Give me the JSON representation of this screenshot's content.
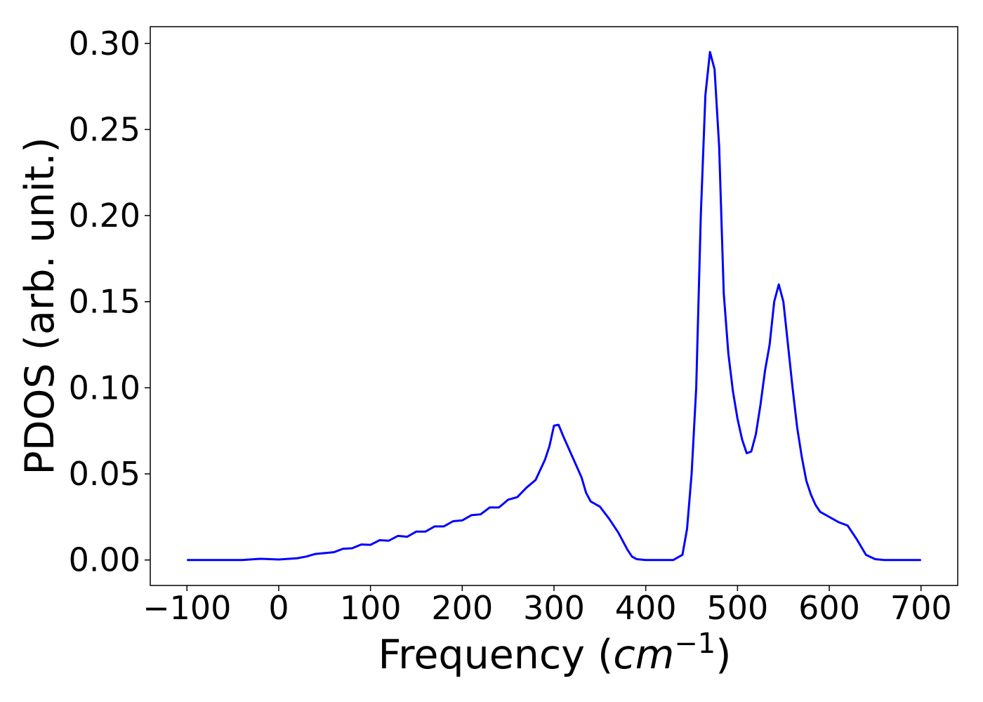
{
  "chart_data": {
    "type": "line",
    "xlabel": [
      "Frequency (",
      "cm",
      "−1",
      ")"
    ],
    "ylabel": "PDOS (arb. unit.)",
    "x": [
      -100,
      -80,
      -60,
      -40,
      -20,
      0,
      20,
      30,
      40,
      50,
      60,
      70,
      80,
      90,
      100,
      110,
      120,
      130,
      140,
      150,
      160,
      170,
      180,
      190,
      200,
      210,
      220,
      230,
      240,
      250,
      260,
      270,
      280,
      290,
      295,
      300,
      305,
      310,
      320,
      330,
      335,
      340,
      350,
      360,
      370,
      380,
      385,
      390,
      400,
      430,
      440,
      445,
      450,
      455,
      460,
      465,
      470,
      475,
      480,
      485,
      490,
      495,
      500,
      505,
      510,
      515,
      520,
      525,
      530,
      535,
      540,
      545,
      550,
      555,
      560,
      565,
      570,
      575,
      580,
      585,
      590,
      600,
      610,
      620,
      630,
      640,
      650,
      660,
      700
    ],
    "series": [
      {
        "name": "PDOS",
        "color": "#0000ff",
        "values": [
          0,
          0,
          0,
          0,
          0.0007,
          0.0003,
          0.001,
          0.002,
          0.0035,
          0.004,
          0.0045,
          0.0065,
          0.0068,
          0.009,
          0.0088,
          0.0115,
          0.0112,
          0.014,
          0.0135,
          0.0165,
          0.0165,
          0.0195,
          0.0195,
          0.0225,
          0.023,
          0.026,
          0.0265,
          0.0305,
          0.0305,
          0.035,
          0.0365,
          0.042,
          0.0465,
          0.058,
          0.066,
          0.078,
          0.0785,
          0.072,
          0.06,
          0.048,
          0.039,
          0.034,
          0.031,
          0.024,
          0.016,
          0.006,
          0.002,
          0.0005,
          0,
          0,
          0.003,
          0.018,
          0.05,
          0.1,
          0.2,
          0.27,
          0.295,
          0.285,
          0.24,
          0.155,
          0.12,
          0.098,
          0.082,
          0.07,
          0.062,
          0.063,
          0.073,
          0.09,
          0.11,
          0.125,
          0.15,
          0.16,
          0.15,
          0.125,
          0.1,
          0.077,
          0.06,
          0.046,
          0.038,
          0.032,
          0.028,
          0.025,
          0.022,
          0.02,
          0.012,
          0.003,
          0.0005,
          0,
          0
        ]
      }
    ],
    "xlim": [
      -140,
      740
    ],
    "ylim": [
      -0.0148,
      0.3097
    ],
    "xticks": [
      {
        "value": -100,
        "label": "−100"
      },
      0,
      100,
      200,
      300,
      400,
      500,
      600,
      700
    ],
    "yticks": [
      {
        "value": 0,
        "label": "0.00"
      },
      {
        "value": 0.05,
        "label": "0.05"
      },
      {
        "value": 0.1,
        "label": "0.10"
      },
      {
        "value": 0.15,
        "label": "0.15"
      },
      {
        "value": 0.2,
        "label": "0.20"
      },
      {
        "value": 0.25,
        "label": "0.25"
      },
      {
        "value": 0.3,
        "label": "0.30"
      }
    ]
  }
}
